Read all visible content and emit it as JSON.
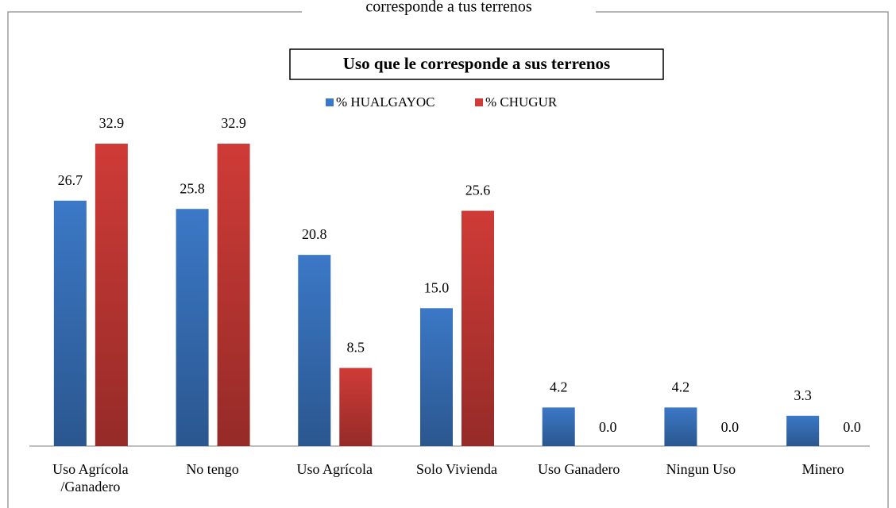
{
  "chart_data": {
    "type": "bar",
    "subtitle": "corresponde a tus terrenos",
    "title": "Uso que le corresponde a sus terrenos",
    "categories": [
      "Uso Agrícola /Ganadero",
      "No tengo",
      "Uso Agrícola",
      "Solo Vivienda",
      "Uso Ganadero",
      "Ningun Uso",
      "Minero"
    ],
    "series": [
      {
        "name": "% HUALGAYOC",
        "color": "#3b78c6",
        "values": [
          26.7,
          25.8,
          20.8,
          15,
          4.2,
          4.2,
          3.3
        ],
        "value_labels": [
          "26.7",
          "25.8",
          "20.8",
          "15.0",
          "4.2",
          "4.2",
          "3.3"
        ]
      },
      {
        "name": "% CHUGUR",
        "color": "#cf3b37",
        "values": [
          32.9,
          32.9,
          8.5,
          25.6,
          0,
          0,
          0
        ],
        "value_labels": [
          "32.9",
          "32.9",
          "8.5",
          "25.6",
          "0.0",
          "0.0",
          "0.0"
        ]
      }
    ],
    "legend": "top"
  }
}
